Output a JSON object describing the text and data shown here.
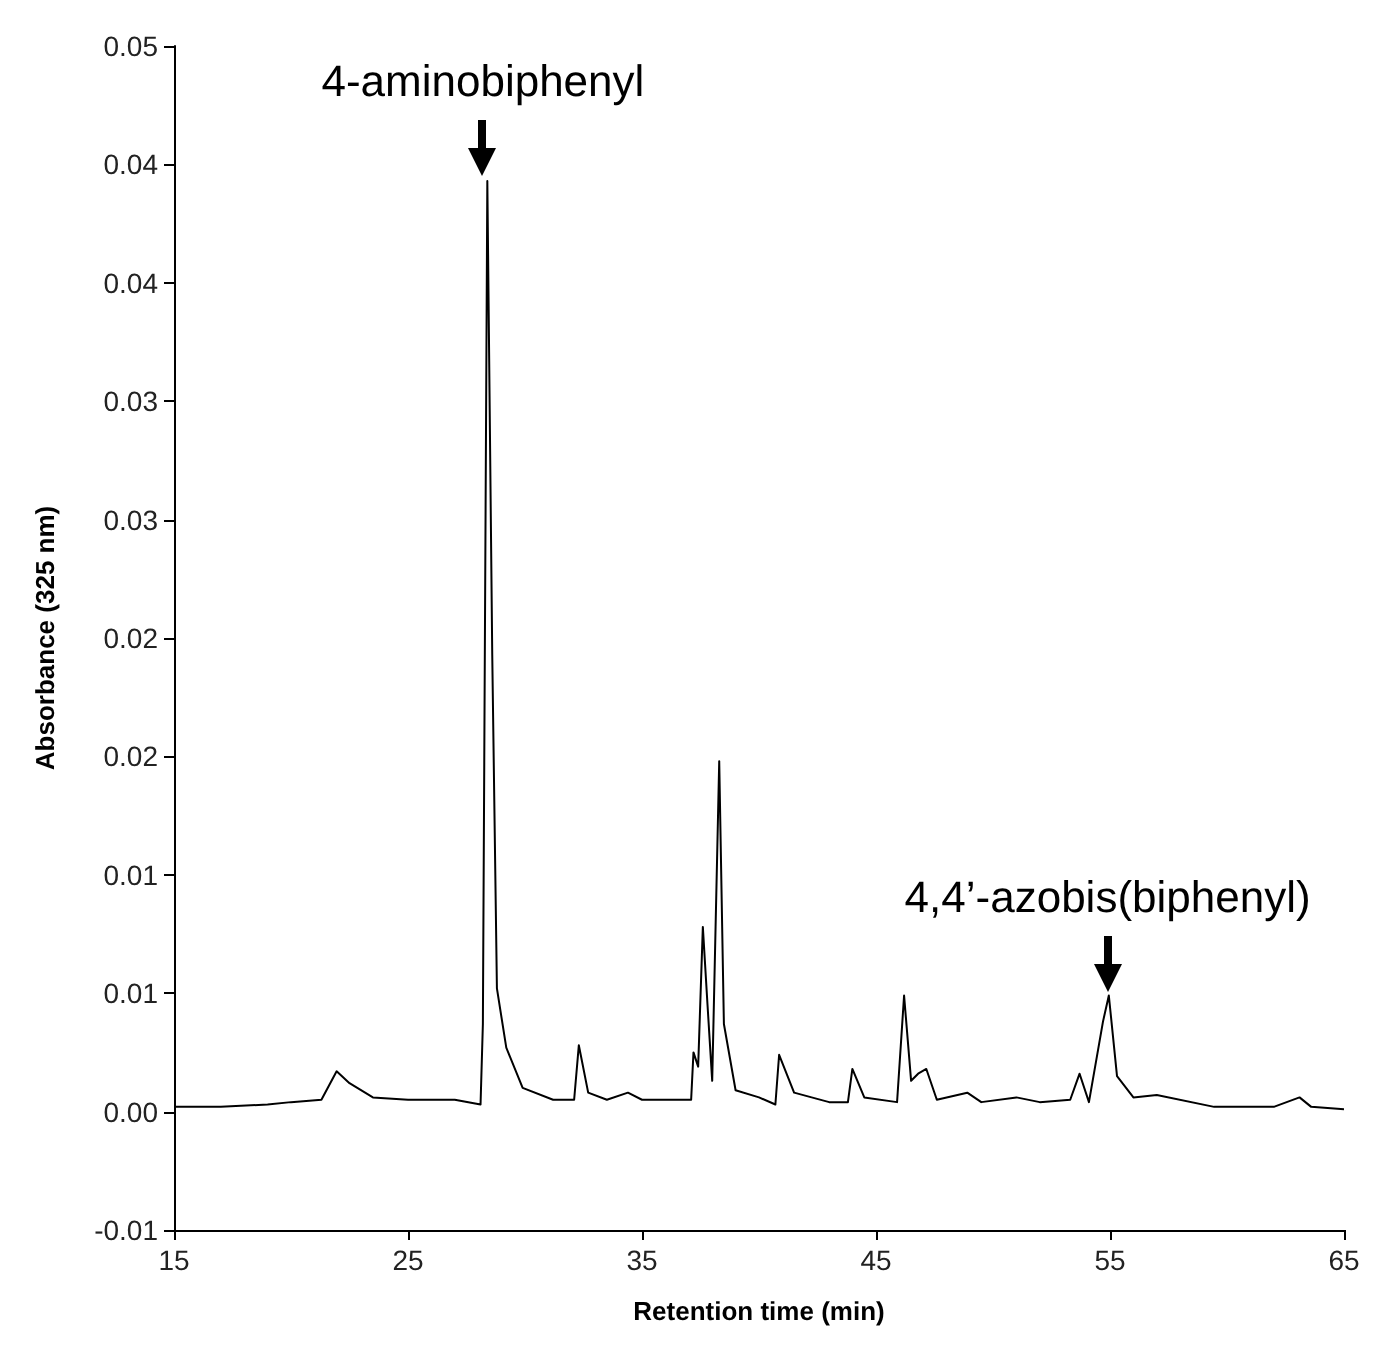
{
  "chart_data": {
    "type": "line",
    "xlabel": "Retention time (min)",
    "ylabel": "Absorbance (325 nm)",
    "xlim": [
      15,
      65
    ],
    "xticks": [
      15,
      25,
      35,
      45,
      55,
      65
    ],
    "ylim": [
      -0.005,
      0.045
    ],
    "yticks": [
      {
        "value": -0.005,
        "label": "-0.01"
      },
      {
        "value": 0,
        "label": "0.00"
      },
      {
        "value": 0.005,
        "label": "0.01"
      },
      {
        "value": 0.01,
        "label": "0.01"
      },
      {
        "value": 0.015,
        "label": "0.02"
      },
      {
        "value": 0.02,
        "label": "0.02"
      },
      {
        "value": 0.025,
        "label": "0.03"
      },
      {
        "value": 0.03,
        "label": "0.03"
      },
      {
        "value": 0.035,
        "label": "0.04"
      },
      {
        "value": 0.04,
        "label": "0.04"
      },
      {
        "value": 0.045,
        "label": "0.05"
      }
    ],
    "grid": false,
    "marker": "none",
    "line_style": "solid",
    "series": [
      {
        "color": "#000000",
        "x": [
          15,
          17,
          19,
          20,
          21.3,
          21.95,
          22.5,
          23.5,
          25,
          27,
          28.1,
          28.2,
          28.39,
          28.6,
          28.8,
          29.2,
          29.9,
          31.2,
          32.1,
          32.3,
          32.7,
          33.5,
          34.4,
          35,
          37.1,
          37.2,
          37.4,
          37.6,
          37.8,
          38.0,
          38.3,
          38.5,
          39.0,
          40,
          40.7,
          40.86,
          41.5,
          43,
          43.8,
          43.99,
          44.5,
          45.9,
          46.2,
          46.5,
          46.8,
          47.15,
          47.6,
          48.9,
          49.5,
          51.0,
          52,
          53.3,
          53.7,
          54.1,
          54.7,
          54.95,
          55.3,
          56,
          57.0,
          59.45,
          62,
          63.1,
          63.6,
          65
        ],
        "values": [
          0.0002,
          0.0002,
          0.0003,
          0.0004,
          0.0005,
          0.0017,
          0.0012,
          0.0006,
          0.0005,
          0.0005,
          0.0003,
          0.0037,
          0.0393,
          0.0193,
          0.0052,
          0.0027,
          0.001,
          0.0005,
          0.0005,
          0.0028,
          0.0008,
          0.0005,
          0.0008,
          0.0005,
          0.0005,
          0.0025,
          0.0019,
          0.0078,
          0.0045,
          0.0013,
          0.0148,
          0.0037,
          0.0009,
          0.0006,
          0.0003,
          0.0024,
          0.0008,
          0.0004,
          0.0004,
          0.0018,
          0.0006,
          0.0004,
          0.0049,
          0.0013,
          0.0016,
          0.0018,
          0.0005,
          0.0008,
          0.0004,
          0.0006,
          0.0004,
          0.0005,
          0.0016,
          0.0004,
          0.0038,
          0.0049,
          0.0015,
          0.0006,
          0.0007,
          0.0002,
          0.0002,
          0.0006,
          0.0002,
          0.0001
        ]
      }
    ],
    "annotations": [
      {
        "text": "4-aminobiphenyl",
        "x": 28.39,
        "y": 0.0393
      },
      {
        "text": "4,4’-azobis(biphenyl)",
        "x": 54.95,
        "y": 0.0049
      }
    ]
  }
}
